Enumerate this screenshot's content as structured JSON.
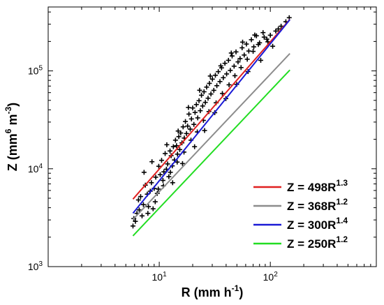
{
  "chart_data": {
    "type": "scatter",
    "x_scale": "log",
    "y_scale": "log",
    "xlim": [
      1,
      900
    ],
    "ylim": [
      1000,
      450000
    ],
    "xlabel": {
      "base": "R (mm h",
      "sup": "-1",
      "tail": ")"
    },
    "ylabel": {
      "base": "Z (mm",
      "sup1": "6",
      "mid": " m",
      "sup2": "-3",
      "tail": ")"
    },
    "x_ticks": [
      {
        "value": 10,
        "base": "10",
        "sup": "1"
      },
      {
        "value": 100,
        "base": "10",
        "sup": "2"
      }
    ],
    "y_ticks": [
      {
        "value": 1000,
        "base": "10",
        "sup": "3"
      },
      {
        "value": 10000,
        "base": "10",
        "sup": "4"
      },
      {
        "value": 100000,
        "base": "10",
        "sup": "5"
      }
    ],
    "grid": false,
    "legend_position": "bottom-right",
    "fit_lines": [
      {
        "label": "Z = 498R",
        "exponent_label": "1.3",
        "a": 498,
        "b": 1.3,
        "x_range": [
          5.8,
          150
        ],
        "color": "#e02020"
      },
      {
        "label": "Z = 368R",
        "exponent_label": "1.2",
        "a": 368,
        "b": 1.2,
        "x_range": [
          5.8,
          150
        ],
        "color": "#8c8c8c"
      },
      {
        "label": "Z = 300R",
        "exponent_label": "1.4",
        "a": 300,
        "b": 1.4,
        "x_range": [
          5.8,
          150
        ],
        "color": "#1a1ad6"
      },
      {
        "label": "Z = 250R",
        "exponent_label": "1.2",
        "a": 250,
        "b": 1.2,
        "x_range": [
          5.8,
          150
        ],
        "color": "#22dd22"
      }
    ],
    "scatter_points": [
      [
        5.8,
        2600
      ],
      [
        5.9,
        3100
      ],
      [
        6.1,
        2900
      ],
      [
        6.3,
        3500
      ],
      [
        6.5,
        4800
      ],
      [
        6.8,
        5200
      ],
      [
        7.0,
        3300
      ],
      [
        7.2,
        4300
      ],
      [
        7.5,
        6800
      ],
      [
        7.8,
        5500
      ],
      [
        8.0,
        4100
      ],
      [
        8.3,
        5900
      ],
      [
        8.5,
        7200
      ],
      [
        8.8,
        3900
      ],
      [
        9.0,
        6300
      ],
      [
        9.3,
        8200
      ],
      [
        9.6,
        5600
      ],
      [
        9.9,
        10600
      ],
      [
        10.2,
        8700
      ],
      [
        10.5,
        12200
      ],
      [
        10.8,
        7600
      ],
      [
        11.0,
        9300
      ],
      [
        11.3,
        14300
      ],
      [
        11.6,
        9900
      ],
      [
        11.9,
        11200
      ],
      [
        12.2,
        8300
      ],
      [
        12.5,
        15200
      ],
      [
        12.8,
        13600
      ],
      [
        13.1,
        10700
      ],
      [
        13.4,
        16800
      ],
      [
        13.7,
        12300
      ],
      [
        14.0,
        19600
      ],
      [
        14.3,
        17200
      ],
      [
        14.6,
        14100
      ],
      [
        15.0,
        21300
      ],
      [
        15.3,
        15700
      ],
      [
        15.6,
        23200
      ],
      [
        16.0,
        18400
      ],
      [
        16.4,
        26800
      ],
      [
        16.8,
        20600
      ],
      [
        17.2,
        30400
      ],
      [
        17.6,
        22900
      ],
      [
        18.0,
        27300
      ],
      [
        18.5,
        36200
      ],
      [
        19.0,
        25400
      ],
      [
        19.5,
        32300
      ],
      [
        20.0,
        41800
      ],
      [
        20.5,
        28400
      ],
      [
        21.0,
        37600
      ],
      [
        21.6,
        45300
      ],
      [
        22.2,
        33100
      ],
      [
        22.8,
        49600
      ],
      [
        23.4,
        39200
      ],
      [
        24.0,
        56400
      ],
      [
        24.6,
        43800
      ],
      [
        25.3,
        61200
      ],
      [
        26.0,
        47700
      ],
      [
        26.7,
        68300
      ],
      [
        27.5,
        52600
      ],
      [
        28.3,
        74600
      ],
      [
        29.2,
        58100
      ],
      [
        30.1,
        82400
      ],
      [
        31.0,
        63300
      ],
      [
        32.0,
        90200
      ],
      [
        33.0,
        70600
      ],
      [
        34.0,
        98300
      ],
      [
        35.2,
        77800
      ],
      [
        36.4,
        107400
      ],
      [
        37.7,
        85200
      ],
      [
        39.0,
        119600
      ],
      [
        40.4,
        93100
      ],
      [
        42.0,
        128300
      ],
      [
        43.6,
        101200
      ],
      [
        45.3,
        142100
      ],
      [
        47.2,
        111800
      ],
      [
        49.1,
        156400
      ],
      [
        51.2,
        123600
      ],
      [
        53.4,
        133600
      ],
      [
        55.7,
        172200
      ],
      [
        58.2,
        145300
      ],
      [
        60.9,
        188100
      ],
      [
        64.0,
        159600
      ],
      [
        67.5,
        208300
      ],
      [
        71.0,
        176100
      ],
      [
        75.0,
        228400
      ],
      [
        80.0,
        193700
      ],
      [
        86.0,
        246200
      ],
      [
        93.0,
        211200
      ],
      [
        100.0,
        231600
      ],
      [
        112.0,
        255400
      ],
      [
        125.0,
        286300
      ],
      [
        138.0,
        318200
      ],
      [
        148.0,
        349800
      ],
      [
        7.3,
        9200
      ],
      [
        8.6,
        11800
      ],
      [
        9.8,
        6200
      ],
      [
        11.7,
        17600
      ],
      [
        13.2,
        7200
      ],
      [
        14.8,
        24300
      ],
      [
        16.2,
        11300
      ],
      [
        18.3,
        42300
      ],
      [
        20.8,
        16800
      ],
      [
        23.1,
        63400
      ],
      [
        25.6,
        24600
      ],
      [
        28.8,
        88600
      ],
      [
        31.6,
        37400
      ],
      [
        35.8,
        112600
      ],
      [
        39.8,
        52100
      ],
      [
        44.5,
        152300
      ],
      [
        49.8,
        72800
      ],
      [
        56.3,
        196800
      ],
      [
        63.0,
        98400
      ],
      [
        72.4,
        232600
      ],
      [
        82.0,
        128200
      ],
      [
        95.0,
        198300
      ],
      [
        105.0,
        178600
      ],
      [
        118.0,
        268400
      ],
      [
        6.6,
        3800
      ],
      [
        7.9,
        3500
      ],
      [
        9.2,
        4600
      ],
      [
        10.9,
        6700
      ],
      [
        12.6,
        9200
      ],
      [
        14.5,
        11700
      ],
      [
        16.7,
        14800
      ],
      [
        19.3,
        19600
      ],
      [
        22.0,
        23800
      ],
      [
        25.0,
        31200
      ],
      [
        28.0,
        38400
      ],
      [
        32.5,
        47200
      ],
      [
        37.0,
        58800
      ],
      [
        42.5,
        72100
      ],
      [
        48.0,
        89300
      ],
      [
        54.5,
        108200
      ],
      [
        62.0,
        131600
      ],
      [
        70.0,
        158300
      ],
      [
        78.0,
        186200
      ],
      [
        88.0,
        221400
      ]
    ]
  }
}
